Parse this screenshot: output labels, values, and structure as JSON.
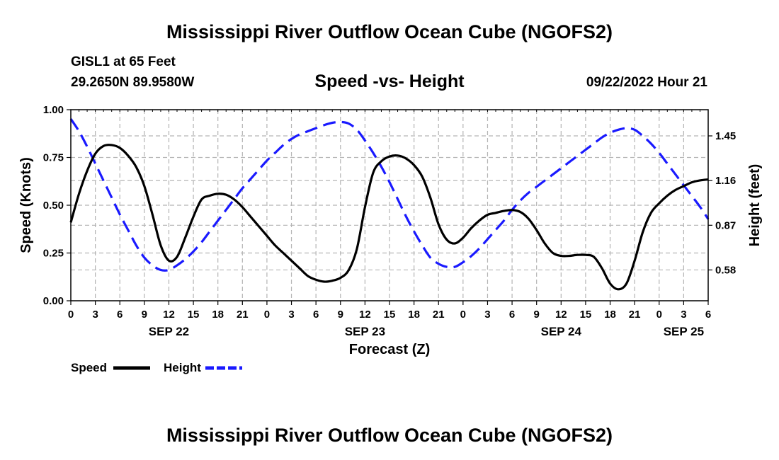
{
  "header": {
    "title": "Mississippi River Outflow Ocean Cube (NGOFS2)",
    "station": "GISL1 at 65 Feet",
    "coordinates": "29.2650N  89.9580W",
    "subtitle": "Speed -vs- Height",
    "datetime": "09/22/2022 Hour 21"
  },
  "footer": {
    "title": "Mississippi River Outflow Ocean Cube (NGOFS2)"
  },
  "chart_data": {
    "type": "line",
    "title": "Speed -vs- Height",
    "xlabel": "Forecast (Z)",
    "ylabel": "Speed (Knots)",
    "y2label": "Height (feet)",
    "grid": true,
    "x_range_hours": [
      0,
      78
    ],
    "ylim": [
      0,
      1
    ],
    "y2lim": [
      0.38,
      1.62
    ],
    "x_ticks": [
      0,
      3,
      6,
      9,
      12,
      15,
      18,
      21,
      24,
      27,
      30,
      33,
      36,
      39,
      42,
      45,
      48,
      51,
      54,
      57,
      60,
      63,
      66,
      69,
      72,
      75,
      78
    ],
    "x_tick_labels": [
      "0",
      "3",
      "6",
      "9",
      "12",
      "15",
      "18",
      "21",
      "0",
      "3",
      "6",
      "9",
      "12",
      "15",
      "18",
      "21",
      "0",
      "3",
      "6",
      "9",
      "12",
      "15",
      "18",
      "21",
      "0",
      "3",
      "6"
    ],
    "date_labels": [
      {
        "hour": 12,
        "label": "SEP 22"
      },
      {
        "hour": 36,
        "label": "SEP 23"
      },
      {
        "hour": 60,
        "label": "SEP 24"
      },
      {
        "hour": 75,
        "label": "SEP 25"
      }
    ],
    "y_ticks": [
      0,
      0.25,
      0.5,
      0.75,
      1
    ],
    "y_tick_labels": [
      "0.00",
      "0.25",
      "0.50",
      "0.75",
      "1.00"
    ],
    "y2_ticks": [
      0.58,
      0.87,
      1.16,
      1.45
    ],
    "y2_tick_labels": [
      "0.58",
      "0.87",
      "1.16",
      "1.45"
    ],
    "series": [
      {
        "name": "Speed",
        "axis": "left",
        "color": "#000000",
        "style": "solid",
        "x": [
          0,
          1,
          2,
          3,
          4,
          5,
          6,
          7,
          8,
          9,
          10,
          11,
          12,
          13,
          14,
          15,
          16,
          17,
          18,
          19,
          20,
          21,
          22,
          23,
          24,
          25,
          26,
          27,
          28,
          29,
          30,
          31,
          32,
          33,
          34,
          35,
          36,
          37,
          38,
          39,
          40,
          41,
          42,
          43,
          44,
          45,
          46,
          47,
          48,
          49,
          50,
          51,
          52,
          53,
          54,
          55,
          56,
          57,
          58,
          59,
          60,
          61,
          62,
          63,
          64,
          65,
          66,
          67,
          68,
          69,
          70,
          71,
          72,
          73,
          74,
          75,
          76,
          77,
          78
        ],
        "values": [
          0.41,
          0.56,
          0.68,
          0.77,
          0.81,
          0.815,
          0.8,
          0.76,
          0.7,
          0.6,
          0.45,
          0.29,
          0.21,
          0.23,
          0.33,
          0.44,
          0.53,
          0.55,
          0.56,
          0.555,
          0.53,
          0.49,
          0.44,
          0.39,
          0.34,
          0.29,
          0.25,
          0.21,
          0.17,
          0.13,
          0.11,
          0.1,
          0.105,
          0.12,
          0.16,
          0.27,
          0.49,
          0.67,
          0.73,
          0.755,
          0.76,
          0.745,
          0.71,
          0.65,
          0.54,
          0.4,
          0.32,
          0.3,
          0.33,
          0.38,
          0.42,
          0.45,
          0.46,
          0.47,
          0.475,
          0.465,
          0.43,
          0.37,
          0.3,
          0.25,
          0.235,
          0.235,
          0.24,
          0.24,
          0.23,
          0.17,
          0.09,
          0.06,
          0.09,
          0.21,
          0.36,
          0.46,
          0.51,
          0.55,
          0.58,
          0.6,
          0.62,
          0.63,
          0.635
        ]
      },
      {
        "name": "Height",
        "axis": "right",
        "color": "#1a1aff",
        "style": "dashed",
        "x": [
          0,
          1,
          2,
          3,
          4,
          5,
          6,
          7,
          8,
          9,
          10,
          11,
          12,
          13,
          14,
          15,
          16,
          17,
          18,
          19,
          20,
          21,
          22,
          23,
          24,
          25,
          26,
          27,
          28,
          29,
          30,
          31,
          32,
          33,
          34,
          35,
          36,
          37,
          38,
          39,
          40,
          41,
          42,
          43,
          44,
          45,
          46,
          47,
          48,
          49,
          50,
          51,
          52,
          53,
          54,
          55,
          56,
          57,
          58,
          59,
          60,
          61,
          62,
          63,
          64,
          65,
          66,
          67,
          68,
          69,
          70,
          71,
          72,
          73,
          74,
          75,
          76,
          77,
          78
        ],
        "values": [
          1.56,
          1.48,
          1.38,
          1.27,
          1.16,
          1.05,
          0.94,
          0.84,
          0.74,
          0.66,
          0.61,
          0.58,
          0.58,
          0.61,
          0.65,
          0.7,
          0.76,
          0.83,
          0.9,
          0.97,
          1.04,
          1.11,
          1.17,
          1.23,
          1.29,
          1.34,
          1.39,
          1.43,
          1.46,
          1.48,
          1.5,
          1.52,
          1.535,
          1.54,
          1.53,
          1.49,
          1.42,
          1.34,
          1.25,
          1.15,
          1.04,
          0.93,
          0.83,
          0.74,
          0.66,
          0.62,
          0.6,
          0.6,
          0.63,
          0.67,
          0.72,
          0.78,
          0.84,
          0.9,
          0.97,
          1.03,
          1.08,
          1.12,
          1.16,
          1.2,
          1.24,
          1.28,
          1.32,
          1.36,
          1.4,
          1.44,
          1.47,
          1.49,
          1.5,
          1.49,
          1.45,
          1.4,
          1.34,
          1.27,
          1.2,
          1.13,
          1.06,
          0.99,
          0.91
        ]
      }
    ],
    "legend": [
      {
        "label": "Speed",
        "color": "#000000",
        "style": "solid"
      },
      {
        "label": "Height",
        "color": "#1a1aff",
        "style": "dashed"
      }
    ],
    "legend_position": "bottom-left"
  }
}
